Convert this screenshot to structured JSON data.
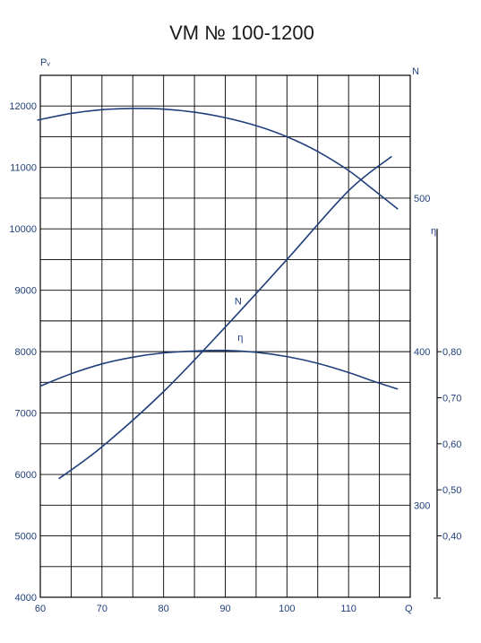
{
  "chart_data": {
    "type": "line",
    "title": "VM № 100-1200",
    "xlabel": "Q",
    "ylabel_left": "Pᵥ",
    "ylabel_right_N": "N",
    "ylabel_right_eta": "η",
    "xlim": [
      60,
      120
    ],
    "ylim": [
      4000,
      12000
    ],
    "grid": true,
    "x_ticks": [
      60,
      70,
      80,
      90,
      100,
      110
    ],
    "y_ticks": [
      4000,
      5000,
      6000,
      7000,
      8000,
      9000,
      10000,
      11000,
      12000
    ],
    "N_ticks": [
      {
        "label": "300",
        "at": 5500
      },
      {
        "label": "400",
        "at": 8000
      },
      {
        "label": "500",
        "at": 10500
      }
    ],
    "eta_ticks": [
      {
        "label": "0,40",
        "value": 0.4
      },
      {
        "label": "0,50",
        "value": 0.5
      },
      {
        "label": "0,60",
        "value": 0.6
      },
      {
        "label": "0,70",
        "value": 0.7
      },
      {
        "label": "0,80",
        "value": 0.8
      }
    ],
    "eta_axis": {
      "value_a": 0.4,
      "pv_a": 5000,
      "value_b": 0.8,
      "pv_b": 8000,
      "min_pv": 4000,
      "max_pv": 10000
    },
    "series": [
      {
        "name": "",
        "color": "#1f3f7a",
        "x": [
          59.5,
          65,
          70,
          75,
          80,
          85,
          90,
          95,
          100,
          105,
          110,
          114,
          118
        ],
        "y": [
          11770,
          11880,
          11940,
          11960,
          11950,
          11900,
          11810,
          11680,
          11500,
          11260,
          10950,
          10640,
          10320
        ]
      },
      {
        "name": "N",
        "label": "N",
        "color": "#1f3f7a",
        "x": [
          63,
          70,
          80,
          90,
          100,
          110,
          117
        ],
        "y": [
          5930,
          6450,
          7350,
          8400,
          9500,
          10620,
          11180
        ]
      },
      {
        "name": "η",
        "label": "η",
        "color": "#1f3f7a",
        "x": [
          60,
          65,
          70,
          75,
          80,
          85,
          90,
          95,
          100,
          105,
          110,
          114,
          118
        ],
        "y": [
          7440,
          7640,
          7800,
          7910,
          7980,
          8010,
          8020,
          7990,
          7920,
          7810,
          7660,
          7520,
          7390
        ]
      }
    ]
  }
}
